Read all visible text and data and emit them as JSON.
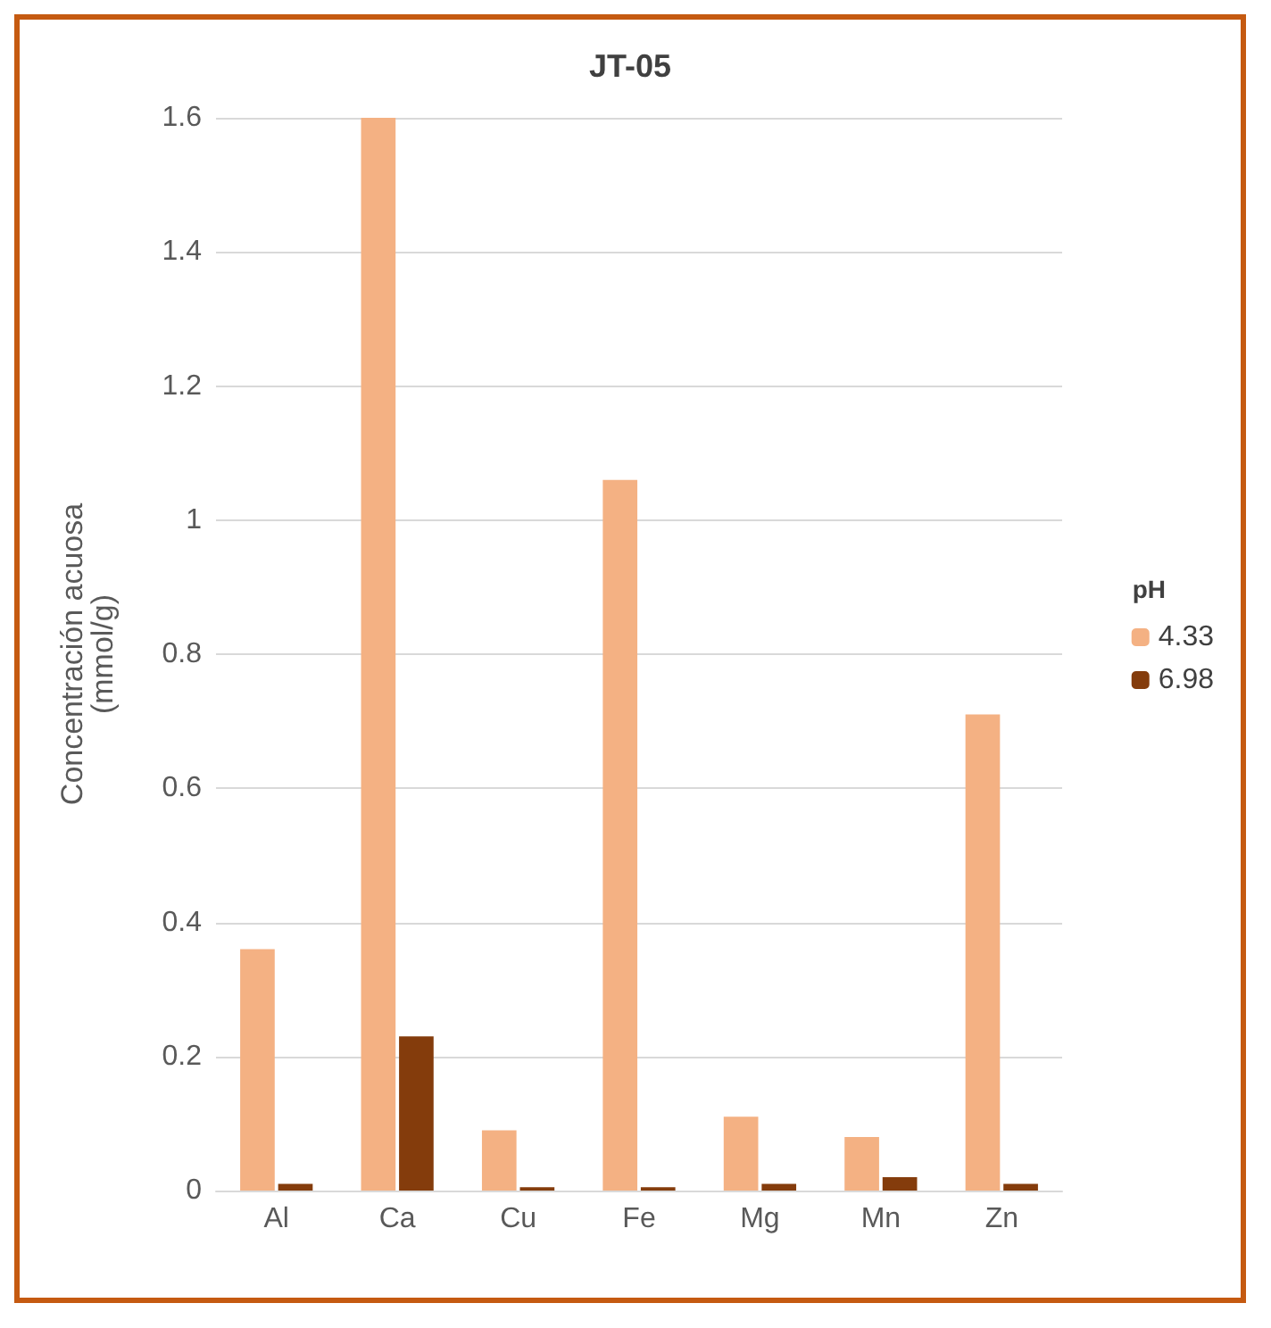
{
  "chart_data": {
    "type": "bar",
    "title": "JT-05",
    "ylabel": "Concentración acuosa\n(mmol/g)",
    "legend_title": "pH",
    "categories": [
      "Al",
      "Ca",
      "Cu",
      "Fe",
      "Mg",
      "Mn",
      "Zn"
    ],
    "series": [
      {
        "name": "4.33",
        "color": "#f4b183",
        "values": [
          0.36,
          1.6,
          0.09,
          1.06,
          0.11,
          0.08,
          0.71
        ]
      },
      {
        "name": "6.98",
        "color": "#843c0c",
        "values": [
          0.01,
          0.23,
          0.005,
          0.005,
          0.01,
          0.02,
          0.01
        ]
      }
    ],
    "ylim": [
      0,
      1.6
    ],
    "yticks": [
      0,
      0.2,
      0.4,
      0.6,
      0.8,
      1,
      1.2,
      1.4,
      1.6
    ],
    "grid": "y",
    "legend": "right"
  }
}
